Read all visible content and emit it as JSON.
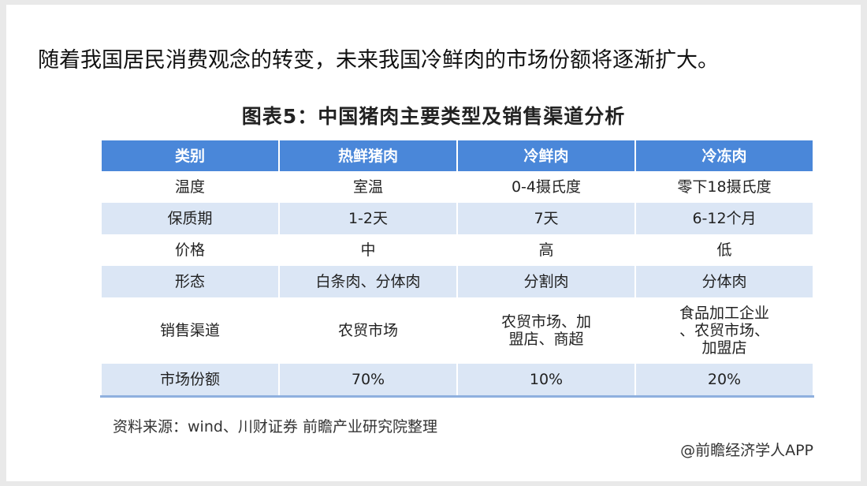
{
  "headline": "随着我国居民消费观念的转变，未来我国冷鲜肉的市场份额将逐渐扩大。",
  "figure_title": "图表5：中国猪肉主要类型及销售渠道分析",
  "table": {
    "headers": [
      "类别",
      "热鲜猪肉",
      "冷鲜肉",
      "冷冻肉"
    ],
    "rows": [
      [
        "温度",
        "室温",
        "0-4摄氏度",
        "零下18摄氏度"
      ],
      [
        "保质期",
        "1-2天",
        "7天",
        "6-12个月"
      ],
      [
        "价格",
        "中",
        "高",
        "低"
      ],
      [
        "形态",
        "白条肉、分体肉",
        "分割肉",
        "分体肉"
      ],
      [
        "销售渠道",
        "农贸市场",
        "农贸市场、加盟店、商超",
        "食品加工企业、农贸市场、加盟店"
      ],
      [
        "市场份额",
        "70%",
        "10%",
        "20%"
      ]
    ]
  },
  "source": "资料来源：wind、川财证券 前瞻产业研究院整理",
  "credit": "@前瞻经济学人APP",
  "colors": {
    "header": "#4a87d9",
    "alt_row": "#dbe6f5"
  }
}
